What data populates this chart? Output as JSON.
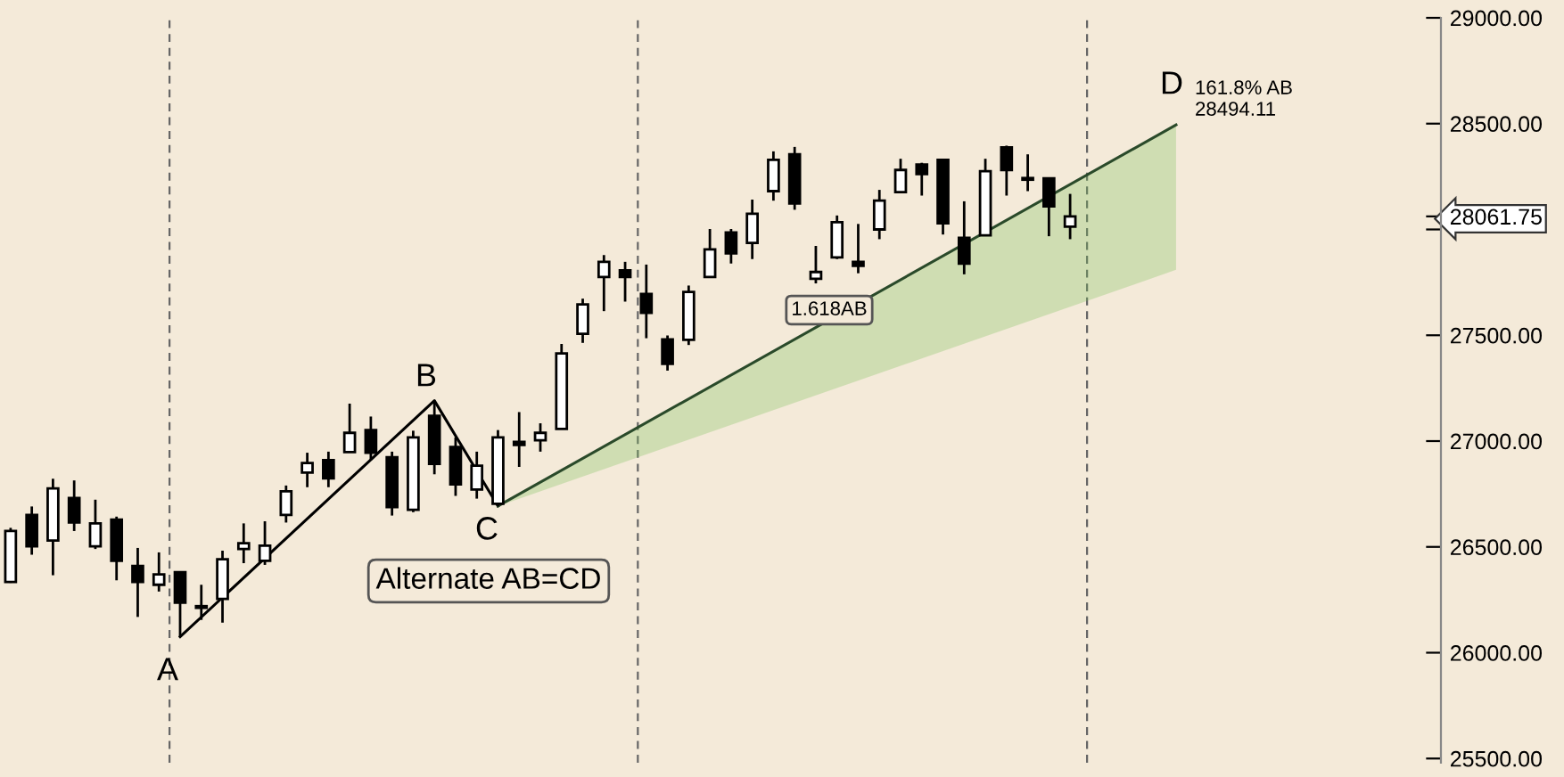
{
  "chart_data": {
    "type": "candlestick",
    "categories": [
      null,
      null,
      null,
      null,
      null,
      null,
      null,
      null,
      null,
      null,
      null,
      null,
      null,
      null,
      null,
      null,
      null,
      null,
      null,
      null,
      null,
      null,
      null,
      null,
      null,
      null,
      null,
      null,
      null,
      null,
      null,
      null,
      null,
      null,
      null,
      null,
      null,
      null,
      null,
      null,
      null,
      null,
      null,
      null,
      null,
      null,
      null,
      null,
      null,
      null,
      null,
      null,
      null,
      null,
      null,
      null,
      null,
      null,
      null,
      null,
      null,
      null,
      null,
      null,
      null,
      null,
      null,
      null
    ],
    "ohlc": [
      [
        26334,
        26590,
        26330,
        26575
      ],
      [
        26651,
        26691,
        26463,
        26503
      ],
      [
        26530,
        26822,
        26366,
        26776
      ],
      [
        26731,
        26814,
        26575,
        26615
      ],
      [
        26503,
        26723,
        26490,
        26611
      ],
      [
        26629,
        26643,
        26342,
        26434
      ],
      [
        26410,
        26495,
        26169,
        26334
      ],
      [
        26321,
        26474,
        26289,
        26370
      ],
      [
        26380,
        26380,
        26075,
        26236
      ],
      [
        26220,
        26321,
        26155,
        26212
      ],
      [
        26254,
        26482,
        26142,
        26442
      ],
      [
        26490,
        26611,
        26423,
        26517
      ],
      [
        26434,
        26621,
        26415,
        26506
      ],
      [
        26651,
        26790,
        26615,
        26763
      ],
      [
        26851,
        26945,
        26782,
        26896
      ],
      [
        26910,
        26950,
        26782,
        26824
      ],
      [
        26948,
        27177,
        26948,
        27039
      ],
      [
        27052,
        27116,
        26910,
        26945
      ],
      [
        26924,
        26950,
        26648,
        26688
      ],
      [
        26675,
        27049,
        26664,
        27017
      ],
      [
        27119,
        27191,
        26843,
        26892
      ],
      [
        26972,
        27017,
        26741,
        26795
      ],
      [
        26771,
        26950,
        26728,
        26884
      ],
      [
        26704,
        27052,
        26691,
        27017
      ],
      [
        26996,
        27137,
        26878,
        26982
      ],
      [
        27004,
        27084,
        26950,
        27039
      ],
      [
        27057,
        27459,
        27057,
        27414
      ],
      [
        27507,
        27673,
        27464,
        27646
      ],
      [
        27775,
        27879,
        27614,
        27847
      ],
      [
        27807,
        27847,
        27659,
        27775
      ],
      [
        27695,
        27834,
        27486,
        27606
      ],
      [
        27480,
        27499,
        27333,
        27365
      ],
      [
        27478,
        27735,
        27454,
        27705
      ],
      [
        27775,
        28002,
        27775,
        27906
      ],
      [
        27986,
        28002,
        27839,
        27887
      ],
      [
        27936,
        28141,
        27860,
        28074
      ],
      [
        28181,
        28369,
        28136,
        28329
      ],
      [
        28355,
        28390,
        28093,
        28123
      ],
      [
        27767,
        27922,
        27745,
        27799
      ],
      [
        27868,
        28066,
        27860,
        28034
      ],
      [
        27847,
        28026,
        27793,
        27828
      ],
      [
        28000,
        28187,
        27954,
        28136
      ],
      [
        28176,
        28334,
        28176,
        28281
      ],
      [
        28307,
        28315,
        28160,
        28262
      ],
      [
        28329,
        28329,
        27976,
        28029
      ],
      [
        27960,
        28133,
        27788,
        27839
      ],
      [
        27972,
        28334,
        27972,
        28275
      ],
      [
        28388,
        28396,
        28160,
        28281
      ],
      [
        28240,
        28355,
        28181,
        28235
      ],
      [
        28241,
        28241,
        27968,
        28109
      ],
      [
        28013,
        28168,
        27954,
        28062
      ],
      null,
      null,
      null,
      null,
      null,
      null,
      null,
      null,
      null,
      null,
      null,
      null,
      null,
      null,
      null,
      null,
      null
    ],
    "colors": [
      "#ffffff",
      "#000000",
      "#ffffff",
      "#000000",
      "#ffffff",
      "#000000",
      "#000000",
      "#ffffff",
      "#000000",
      "#000000",
      "#ffffff",
      "#ffffff",
      "#ffffff",
      "#ffffff",
      "#ffffff",
      "#000000",
      "#ffffff",
      "#000000",
      "#000000",
      "#ffffff",
      "#000000",
      "#000000",
      "#ffffff",
      "#ffffff",
      "#000000",
      "#ffffff",
      "#ffffff",
      "#ffffff",
      "#ffffff",
      "#000000",
      "#000000",
      "#000000",
      "#ffffff",
      "#ffffff",
      "#000000",
      "#ffffff",
      "#ffffff",
      "#000000",
      "#ffffff",
      "#ffffff",
      "#000000",
      "#ffffff",
      "#ffffff",
      "#000000",
      "#000000",
      "#000000",
      "#ffffff",
      "#000000",
      "#000000",
      "#000000",
      "#ffffff",
      null,
      null,
      null,
      null,
      null,
      null,
      null,
      null,
      null,
      null,
      null,
      null,
      null,
      null,
      null,
      null,
      null
    ],
    "series": [
      {
        "type": "line",
        "color": "#000000",
        "values": [
          null,
          null,
          null,
          null,
          null,
          null,
          null,
          null,
          26075,
          null,
          null,
          null,
          null,
          null,
          null,
          null,
          null,
          null,
          null,
          null,
          27191,
          null,
          null,
          26693,
          null,
          null,
          null,
          null,
          null,
          null,
          null,
          null,
          null,
          null,
          null,
          null,
          null,
          null,
          null,
          null,
          null,
          null,
          null,
          null,
          null,
          null,
          null,
          null,
          null,
          null,
          null,
          null,
          null,
          null,
          null,
          null,
          null,
          null,
          null,
          null,
          null,
          null,
          null,
          null,
          null,
          null,
          null,
          null
        ]
      },
      {
        "type": "line",
        "color": "#2a4a2a",
        "values": [
          null,
          null,
          null,
          null,
          null,
          null,
          null,
          null,
          null,
          null,
          null,
          null,
          null,
          null,
          null,
          null,
          null,
          null,
          null,
          null,
          null,
          null,
          null,
          26693,
          null,
          null,
          null,
          null,
          null,
          null,
          null,
          null,
          null,
          null,
          null,
          null,
          null,
          null,
          null,
          null,
          null,
          null,
          null,
          null,
          null,
          null,
          null,
          null,
          null,
          null,
          null,
          null,
          null,
          null,
          null,
          28494.11,
          null,
          null,
          null,
          null,
          null,
          null,
          null,
          null,
          null,
          null,
          null,
          null
        ],
        "lower": [
          null,
          null,
          null,
          null,
          null,
          null,
          null,
          null,
          null,
          null,
          null,
          null,
          null,
          null,
          null,
          null,
          null,
          null,
          null,
          null,
          null,
          null,
          null,
          26693,
          null,
          null,
          null,
          null,
          null,
          null,
          null,
          null,
          null,
          null,
          null,
          null,
          null,
          null,
          null,
          null,
          null,
          null,
          null,
          null,
          null,
          null,
          null,
          null,
          null,
          null,
          null,
          null,
          null,
          null,
          null,
          27809,
          null,
          null,
          null,
          null,
          null,
          null,
          null,
          null,
          null,
          null,
          null,
          null
        ],
        "upper": [
          null,
          null,
          null,
          null,
          null,
          null,
          null,
          null,
          null,
          null,
          null,
          null,
          null,
          null,
          null,
          null,
          null,
          null,
          null,
          null,
          null,
          null,
          null,
          26693,
          null,
          null,
          null,
          null,
          null,
          null,
          null,
          null,
          null,
          null,
          null,
          null,
          null,
          null,
          null,
          null,
          null,
          null,
          null,
          null,
          null,
          null,
          null,
          null,
          null,
          null,
          null,
          null,
          null,
          null,
          null,
          28494.11,
          null,
          null,
          null,
          null,
          null,
          null,
          null,
          null,
          null,
          null,
          null,
          null
        ]
      }
    ],
    "ylim": [
      25480,
      29000
    ],
    "yticks": [
      {
        "value": 25500,
        "label": "25500.00"
      },
      {
        "value": 26000,
        "label": "26000.00"
      },
      {
        "value": 26500,
        "label": "26500.00"
      },
      {
        "value": 27000,
        "label": "27000.00"
      },
      {
        "value": 27500,
        "label": "27500.00"
      },
      {
        "value": 28000,
        "label": null
      },
      {
        "value": 28061.75,
        "label": "28061.75"
      },
      {
        "value": 28500,
        "label": "28500.00"
      },
      {
        "value": 29000,
        "label": "29000.00"
      }
    ],
    "tick_labels": "y",
    "annotations": [
      "A",
      "B",
      "C",
      "D",
      "161.8% AB",
      "28494.11",
      "1.618AB",
      "Alternate AB=CD"
    ],
    "legend": false,
    "grid": false,
    "marker": "none"
  }
}
